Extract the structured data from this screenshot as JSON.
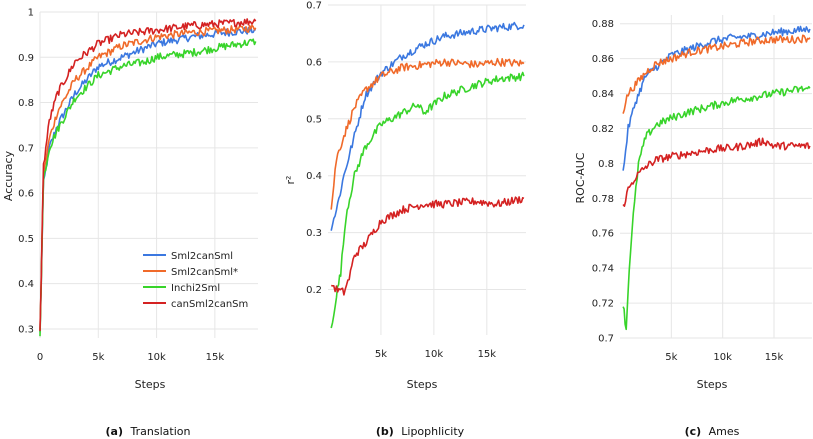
{
  "legend": [
    {
      "name": "Sml2canSml",
      "color": "#3b78e0"
    },
    {
      "name": "Sml2canSml*",
      "color": "#f06a2a"
    },
    {
      "name": "Inchi2Sml",
      "color": "#38d42a"
    },
    {
      "name": "canSml2canSm",
      "color": "#d42222"
    }
  ],
  "chart_data": [
    {
      "type": "line",
      "caption_tag": "(a)",
      "caption_text": "Translation",
      "xlabel": "Steps",
      "ylabel": "Accuracy",
      "xlim": [
        0,
        18700
      ],
      "ylim": [
        0.28,
        1.0
      ],
      "xticks": [
        0,
        5000,
        10000,
        15000
      ],
      "xtick_labels": [
        "0",
        "5k",
        "10k",
        "15k"
      ],
      "yticks": [
        0.3,
        0.4,
        0.5,
        0.6,
        0.7,
        0.8,
        0.9,
        1.0
      ],
      "ytick_labels": [
        "0.3",
        "0.4",
        "0.5",
        "0.6",
        "0.7",
        "0.8",
        "0.9",
        "1"
      ],
      "legend_position": "lower-right",
      "series": [
        {
          "name": "Sml2canSml",
          "color": "#3b78e0",
          "x": [
            0,
            300,
            800,
            1500,
            3000,
            5000,
            7000,
            10000,
            13000,
            16000,
            18500
          ],
          "y": [
            0.29,
            0.62,
            0.7,
            0.75,
            0.82,
            0.88,
            0.9,
            0.93,
            0.945,
            0.955,
            0.96
          ]
        },
        {
          "name": "Sml2canSml*",
          "color": "#f06a2a",
          "x": [
            0,
            300,
            800,
            1500,
            3000,
            5000,
            7000,
            10000,
            13000,
            16000,
            18500
          ],
          "y": [
            0.29,
            0.64,
            0.72,
            0.78,
            0.85,
            0.9,
            0.925,
            0.945,
            0.955,
            0.96,
            0.965
          ]
        },
        {
          "name": "Inchi2Sml",
          "color": "#38d42a",
          "x": [
            0,
            300,
            800,
            1500,
            3000,
            5000,
            7000,
            9000,
            10000,
            13000,
            16000,
            18500
          ],
          "y": [
            0.29,
            0.63,
            0.7,
            0.74,
            0.81,
            0.86,
            0.88,
            0.89,
            0.9,
            0.91,
            0.925,
            0.935
          ]
        },
        {
          "name": "canSml2canSm",
          "color": "#d42222",
          "x": [
            0,
            300,
            800,
            1500,
            3000,
            5000,
            7000,
            10000,
            13000,
            16000,
            18500
          ],
          "y": [
            0.29,
            0.66,
            0.76,
            0.82,
            0.89,
            0.93,
            0.95,
            0.96,
            0.97,
            0.975,
            0.98
          ]
        }
      ]
    },
    {
      "type": "line",
      "caption_tag": "(b)",
      "caption_text": "Lipophlicity",
      "xlabel": "Steps",
      "ylabel": "r²",
      "xlim": [
        0,
        18700
      ],
      "ylim": [
        0.12,
        0.7
      ],
      "xticks": [
        5000,
        10000,
        15000
      ],
      "xtick_labels": [
        "5k",
        "10k",
        "15k"
      ],
      "yticks": [
        0.2,
        0.3,
        0.4,
        0.5,
        0.6,
        0.7
      ],
      "ytick_labels": [
        "0.2",
        "0.3",
        "0.4",
        "0.5",
        "0.6",
        "0.7"
      ],
      "series": [
        {
          "name": "Sml2canSml",
          "color": "#3b78e0",
          "x": [
            300,
            800,
            1500,
            2500,
            3500,
            5000,
            7000,
            9000,
            11000,
            14000,
            16000,
            18500
          ],
          "y": [
            0.31,
            0.34,
            0.4,
            0.47,
            0.54,
            0.58,
            0.61,
            0.63,
            0.645,
            0.655,
            0.66,
            0.665
          ]
        },
        {
          "name": "Sml2canSml*",
          "color": "#f06a2a",
          "x": [
            300,
            800,
            1500,
            2500,
            3500,
            5000,
            7000,
            9000,
            11000,
            14000,
            16000,
            18500
          ],
          "y": [
            0.34,
            0.43,
            0.47,
            0.52,
            0.55,
            0.575,
            0.59,
            0.595,
            0.6,
            0.595,
            0.6,
            0.597
          ]
        },
        {
          "name": "Inchi2Sml",
          "color": "#38d42a",
          "x": [
            300,
            800,
            1200,
            1700,
            2500,
            3500,
            5000,
            7000,
            8500,
            9000,
            11000,
            14000,
            16000,
            18500
          ],
          "y": [
            0.13,
            0.19,
            0.23,
            0.33,
            0.4,
            0.45,
            0.49,
            0.51,
            0.525,
            0.51,
            0.54,
            0.56,
            0.57,
            0.575
          ]
        },
        {
          "name": "canSml2canSm",
          "color": "#d42222",
          "x": [
            300,
            800,
            1500,
            2000,
            2500,
            3500,
            5000,
            7000,
            9000,
            11000,
            14000,
            16000,
            18500
          ],
          "y": [
            0.21,
            0.2,
            0.195,
            0.22,
            0.26,
            0.28,
            0.32,
            0.34,
            0.35,
            0.35,
            0.355,
            0.35,
            0.36
          ]
        }
      ]
    },
    {
      "type": "line",
      "caption_tag": "(c)",
      "caption_text": "Ames",
      "xlabel": "Steps",
      "ylabel": "ROC-AUC",
      "xlim": [
        0,
        18700
      ],
      "ylim": [
        0.7,
        0.885
      ],
      "xticks": [
        5000,
        10000,
        15000
      ],
      "xtick_labels": [
        "5k",
        "10k",
        "15k"
      ],
      "yticks": [
        0.7,
        0.72,
        0.74,
        0.76,
        0.78,
        0.8,
        0.82,
        0.84,
        0.86,
        0.88
      ],
      "ytick_labels": [
        "0.7",
        "0.72",
        "0.74",
        "0.76",
        "0.78",
        "0.8",
        "0.82",
        "0.84",
        "0.86",
        "0.88"
      ],
      "series": [
        {
          "name": "Sml2canSml",
          "color": "#3b78e0",
          "x": [
            300,
            800,
            1500,
            2500,
            3500,
            5000,
            7000,
            9000,
            11000,
            13000,
            15000,
            17000,
            18500
          ],
          "y": [
            0.795,
            0.82,
            0.835,
            0.85,
            0.855,
            0.862,
            0.866,
            0.87,
            0.872,
            0.873,
            0.875,
            0.876,
            0.877
          ]
        },
        {
          "name": "Sml2canSml*",
          "color": "#f06a2a",
          "x": [
            300,
            800,
            1500,
            2500,
            3500,
            5000,
            7000,
            9000,
            11000,
            13000,
            15000,
            17000,
            18500
          ],
          "y": [
            0.83,
            0.84,
            0.845,
            0.852,
            0.857,
            0.86,
            0.864,
            0.866,
            0.868,
            0.87,
            0.871,
            0.871,
            0.872
          ]
        },
        {
          "name": "Inchi2Sml",
          "color": "#38d42a",
          "x": [
            300,
            600,
            900,
            1300,
            1800,
            2500,
            3500,
            5000,
            7000,
            9000,
            11000,
            13000,
            15000,
            17000,
            18500
          ],
          "y": [
            0.72,
            0.705,
            0.74,
            0.77,
            0.8,
            0.815,
            0.822,
            0.826,
            0.83,
            0.833,
            0.836,
            0.838,
            0.84,
            0.842,
            0.843
          ]
        },
        {
          "name": "canSml2canSm",
          "color": "#d42222",
          "x": [
            300,
            800,
            1500,
            2500,
            3500,
            5000,
            7000,
            9000,
            11000,
            13000,
            14000,
            15000,
            17000,
            18500
          ],
          "y": [
            0.775,
            0.785,
            0.792,
            0.798,
            0.802,
            0.804,
            0.806,
            0.808,
            0.809,
            0.811,
            0.813,
            0.81,
            0.81,
            0.81
          ]
        }
      ]
    }
  ]
}
